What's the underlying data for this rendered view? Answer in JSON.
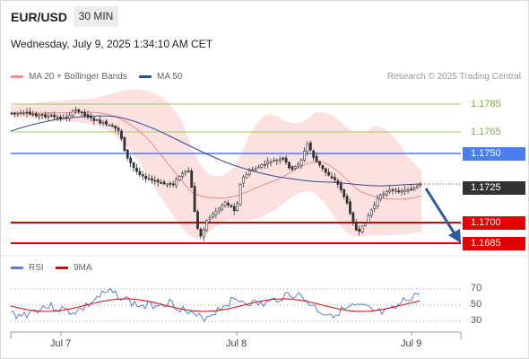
{
  "header": {
    "symbol": "EUR/USD",
    "timeframe": "30 MIN",
    "timestamp": "Wednesday, July 9, 2025 1:34:10 AM CET"
  },
  "legend": {
    "ma20": {
      "label": "MA 20 + Bollinger Bands",
      "color": "#f08c8c"
    },
    "ma50": {
      "label": "MA 50",
      "color": "#2c4f8f"
    },
    "copyright": "Research © 2025 Trading Central"
  },
  "price_levels": {
    "resistance_2": {
      "label": "1.1785",
      "color": "#7cb342"
    },
    "resistance_1": {
      "label": "1.1765",
      "color": "#7cb342"
    },
    "pivot": {
      "label": "1.1750",
      "color": "#4a7ef0"
    },
    "current": {
      "label": "1.1725",
      "color": "#333333"
    },
    "support_1": {
      "label": "1.1700",
      "color": "#e00000"
    },
    "support_2": {
      "label": "1.1685",
      "color": "#e00000"
    }
  },
  "rsi_panel": {
    "rsi_label": "RSI",
    "ma_label": "9MA",
    "rsi_color": "#5b7fd6",
    "ma_color": "#e00000",
    "levels": [
      "70",
      "50",
      "30"
    ]
  },
  "x_axis": {
    "labels": [
      "Jul 7",
      "Jul 8",
      "Jul 9"
    ]
  },
  "colors": {
    "bull_candle": "#333333",
    "bear_candle": "#333333",
    "band_fill": "#fde0e0",
    "forecast_arrow": "#2c5aa0"
  }
}
